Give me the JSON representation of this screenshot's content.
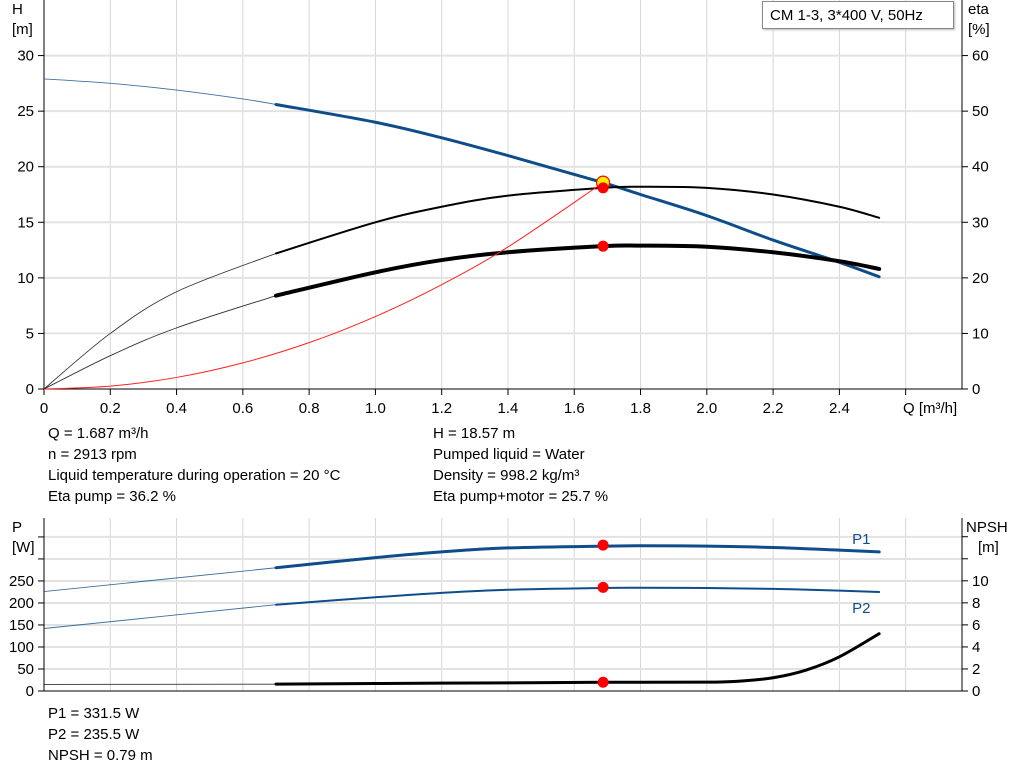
{
  "legend_title": "CM 1-3, 3*400 V, 50Hz",
  "colors": {
    "pump_curve": "#0f4d8a",
    "efficiency": "#000000",
    "system_curve": "#ff2020",
    "marker": "#ff0000",
    "marker_highlight": "#ffee00",
    "grid": "#d6d6d6"
  },
  "duty_info": {
    "left": [
      "Q = 1.687 m³/h",
      "n = 2913 rpm",
      "Liquid temperature during operation = 20 °C",
      "Eta pump = 36.2 %"
    ],
    "right": [
      "H = 18.57 m",
      "Pumped liquid = Water",
      "Density = 998.2 kg/m³",
      "Eta pump+motor = 25.7 %"
    ]
  },
  "power_info": [
    "P1 = 331.5 W",
    "P2 = 235.5 W",
    "NPSH = 0.79 m"
  ],
  "chart_data": [
    {
      "type": "line",
      "xlabel": "Q [m³/h]",
      "ylabel_left": [
        "H",
        "[m]"
      ],
      "ylabel_right": [
        "eta",
        "[%]"
      ],
      "xlim": [
        0,
        2.77
      ],
      "ylim_left": [
        0,
        35
      ],
      "ylim_right": [
        0,
        70
      ],
      "grid": true,
      "x_ticks": [
        0,
        0.2,
        0.4,
        0.6,
        0.8,
        1.0,
        1.2,
        1.4,
        1.6,
        1.8,
        2.0,
        2.2,
        2.4
      ],
      "x_tick_labels": [
        "0",
        "0.2",
        "0.4",
        "0.6",
        "0.8",
        "1.0",
        "1.2",
        "1.4",
        "1.6",
        "1.8",
        "2.0",
        "2.2",
        "2.4"
      ],
      "x_grid": [
        0.2,
        0.4,
        0.6,
        0.8,
        1.0,
        1.2,
        1.4,
        1.6,
        1.8,
        2.0,
        2.2,
        2.4,
        2.6
      ],
      "left_ticks": [
        0,
        5,
        10,
        15,
        20,
        25,
        30
      ],
      "left_tick_labels": [
        "0",
        "5",
        "10",
        "15",
        "20",
        "25",
        "30"
      ],
      "right_ticks": [
        0,
        10,
        20,
        30,
        40,
        50,
        60
      ],
      "right_tick_labels": [
        "0",
        "10",
        "20",
        "30",
        "40",
        "50",
        "60"
      ],
      "series": [
        {
          "axis": "left",
          "color": "#0f4d8a",
          "x": [
            0,
            0.2,
            0.4,
            0.6,
            0.7,
            1.0,
            1.2,
            1.4,
            1.6,
            1.687,
            1.8,
            2.0,
            2.2,
            2.4,
            2.52
          ],
          "y": [
            27.9,
            27.5,
            26.9,
            26.1,
            25.6,
            24.0,
            22.6,
            21.0,
            19.3,
            18.57,
            17.5,
            15.6,
            13.4,
            11.4,
            10.1
          ],
          "thick_from": 0.7,
          "width": 3
        },
        {
          "axis": "right",
          "color": "#000000",
          "x": [
            0,
            0.2,
            0.4,
            0.7,
            1.0,
            1.2,
            1.4,
            1.687,
            1.8,
            2.0,
            2.2,
            2.4,
            2.52
          ],
          "y": [
            0,
            10,
            17.5,
            24.4,
            30.0,
            32.8,
            34.8,
            36.2,
            36.4,
            36.2,
            35.0,
            32.8,
            30.8
          ],
          "thick_from": 0.7,
          "width": 2
        },
        {
          "axis": "right",
          "color": "#000000",
          "x": [
            0,
            0.2,
            0.4,
            0.7,
            1.0,
            1.2,
            1.4,
            1.687,
            1.8,
            2.0,
            2.2,
            2.4,
            2.52
          ],
          "y": [
            0,
            6,
            11,
            16.8,
            21.0,
            23.2,
            24.6,
            25.7,
            25.8,
            25.6,
            24.6,
            23.0,
            21.6
          ],
          "thick_from": 0.7,
          "width": 4
        },
        {
          "axis": "left",
          "color": "#ff2020",
          "x": [
            0,
            0.2,
            0.4,
            0.6,
            0.8,
            1.0,
            1.2,
            1.4,
            1.687
          ],
          "y": [
            0,
            0.26,
            1.04,
            2.35,
            4.17,
            6.52,
            9.39,
            12.78,
            18.57
          ],
          "thick_from": 99,
          "width": 1
        }
      ],
      "points": [
        {
          "axis": "left",
          "x": 1.687,
          "y": 18.57,
          "style": "highlight"
        },
        {
          "axis": "right",
          "x": 1.687,
          "y": 36.2,
          "style": "dot"
        },
        {
          "axis": "right",
          "x": 1.687,
          "y": 25.7,
          "style": "dot"
        }
      ]
    },
    {
      "type": "line",
      "ylabel_left": [
        "P",
        "[W]"
      ],
      "ylabel_right": [
        "NPSH",
        "[m]"
      ],
      "xlim": [
        0,
        2.77
      ],
      "ylim_left": [
        0,
        393
      ],
      "ylim_right": [
        0,
        15.7
      ],
      "grid": true,
      "x_grid": [
        0.2,
        0.4,
        0.6,
        0.8,
        1.0,
        1.2,
        1.4,
        1.6,
        1.8,
        2.0,
        2.2,
        2.4,
        2.6
      ],
      "left_ticks": [
        0,
        50,
        100,
        150,
        200,
        250,
        300,
        350
      ],
      "left_tick_labels": [
        "0",
        "50",
        "100",
        "150",
        "200",
        "250",
        "",
        ""
      ],
      "right_ticks": [
        0,
        2,
        4,
        6,
        8,
        10,
        12,
        14
      ],
      "right_tick_labels": [
        "0",
        "2",
        "4",
        "6",
        "8",
        "10",
        "",
        ""
      ],
      "series": [
        {
          "name": "P1",
          "axis": "left",
          "color": "#0f4d8a",
          "x": [
            0,
            0.7,
            1.0,
            1.2,
            1.4,
            1.687,
            1.8,
            2.0,
            2.2,
            2.4,
            2.52
          ],
          "y": [
            226,
            280,
            303,
            316,
            325,
            329,
            330,
            329,
            326,
            320,
            316
          ],
          "thick_from": 0.7,
          "width": 3
        },
        {
          "name": "P2",
          "axis": "left",
          "color": "#0f4d8a",
          "x": [
            0,
            0.7,
            1.0,
            1.2,
            1.4,
            1.687,
            1.8,
            2.0,
            2.2,
            2.4,
            2.52
          ],
          "y": [
            142,
            196,
            213,
            223,
            230,
            234,
            234.5,
            234,
            232,
            228,
            225
          ],
          "thick_from": 0.7,
          "width": 2
        },
        {
          "axis": "right",
          "color": "#000000",
          "x": [
            0,
            0.7,
            1.0,
            1.4,
            1.687,
            2.0,
            2.1,
            2.2,
            2.3,
            2.4,
            2.52
          ],
          "y": [
            0.6,
            0.62,
            0.68,
            0.74,
            0.79,
            0.8,
            0.9,
            1.2,
            1.9,
            3.1,
            5.2
          ],
          "thick_from": 0.7,
          "width": 3
        }
      ],
      "points": [
        {
          "axis": "left",
          "x": 1.687,
          "y": 331.5,
          "style": "dot"
        },
        {
          "axis": "left",
          "x": 1.687,
          "y": 235.5,
          "style": "dot"
        },
        {
          "axis": "right",
          "x": 1.687,
          "y": 0.79,
          "style": "dot"
        }
      ]
    }
  ]
}
